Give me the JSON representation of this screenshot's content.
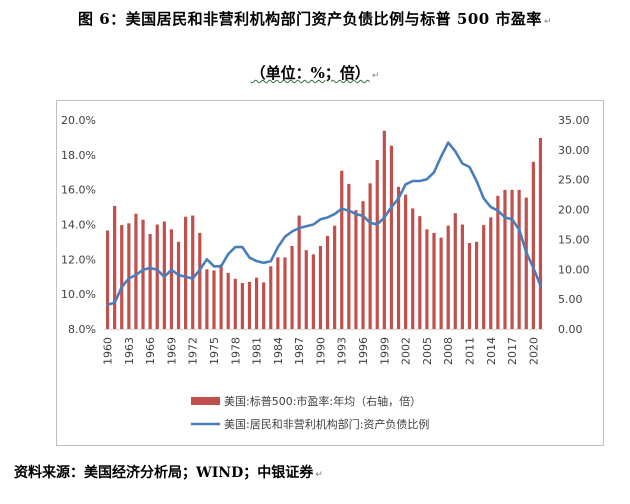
{
  "title": "图 6：美国居民和非营利机构部门资产负债比例与标普 500 市盈率",
  "unit": "（单位：%；倍）",
  "source": "资料来源：美国经济分析局；WIND；中银证券",
  "chart_data": {
    "type": "bar+line",
    "categories": [
      "1960",
      "1961",
      "1962",
      "1963",
      "1964",
      "1965",
      "1966",
      "1967",
      "1968",
      "1969",
      "1970",
      "1971",
      "1972",
      "1973",
      "1974",
      "1975",
      "1976",
      "1977",
      "1978",
      "1979",
      "1980",
      "1981",
      "1982",
      "1983",
      "1984",
      "1985",
      "1986",
      "1987",
      "1988",
      "1989",
      "1990",
      "1991",
      "1992",
      "1993",
      "1994",
      "1995",
      "1996",
      "1997",
      "1998",
      "1999",
      "2000",
      "2001",
      "2002",
      "2003",
      "2004",
      "2005",
      "2006",
      "2007",
      "2008",
      "2009",
      "2010",
      "2011",
      "2012",
      "2013",
      "2014",
      "2015",
      "2016",
      "2017",
      "2018",
      "2019",
      "2020",
      "2021"
    ],
    "x_tick_labels": [
      "1960",
      "1963",
      "1966",
      "1969",
      "1972",
      "1975",
      "1978",
      "1981",
      "1984",
      "1987",
      "1990",
      "1993",
      "1996",
      "1999",
      "2002",
      "2005",
      "2008",
      "2011",
      "2014",
      "2017",
      "2020"
    ],
    "left_axis": {
      "ylim": [
        8.0,
        20.0
      ],
      "ticks": [
        "8.0%",
        "10.0%",
        "12.0%",
        "14.0%",
        "16.0%",
        "18.0%",
        "20.0%"
      ]
    },
    "right_axis": {
      "ylim": [
        0,
        35
      ],
      "ticks": [
        "0.00",
        "5.00",
        "10.00",
        "15.00",
        "20.00",
        "25.00",
        "30.00",
        "35.00"
      ]
    },
    "series": [
      {
        "name": "美国:标普500:市盈率:年均（右轴，倍）",
        "type": "bar",
        "axis": "right",
        "color": "#c0504d",
        "values": [
          16.5,
          20.6,
          17.4,
          17.7,
          19.3,
          18.3,
          15.9,
          17.5,
          18.0,
          16.7,
          14.6,
          18.8,
          19.0,
          16.1,
          10.0,
          9.8,
          10.8,
          9.4,
          8.4,
          7.7,
          7.9,
          8.6,
          7.8,
          10.5,
          12.0,
          12.0,
          13.9,
          19.0,
          13.2,
          12.5,
          13.9,
          15.6,
          17.3,
          26.5,
          24.3,
          19.9,
          21.4,
          24.4,
          28.3,
          33.2,
          30.7,
          23.8,
          22.5,
          20.2,
          18.9,
          16.7,
          16.1,
          15.3,
          17.3,
          19.4,
          17.5,
          14.4,
          14.6,
          17.4,
          18.7,
          22.3,
          23.3,
          23.3,
          23.3,
          22.0,
          28.0,
          32.0
        ]
      },
      {
        "name": "美国:居民和非营利机构部门:资产负债比例",
        "type": "line",
        "axis": "left",
        "color": "#4a7ebb",
        "values": [
          9.4,
          9.5,
          10.4,
          10.9,
          11.1,
          11.4,
          11.5,
          11.4,
          11.0,
          11.4,
          11.1,
          11.0,
          10.9,
          11.4,
          12.0,
          11.6,
          11.6,
          12.3,
          12.7,
          12.7,
          12.1,
          11.9,
          11.8,
          11.9,
          12.7,
          13.3,
          13.6,
          13.8,
          13.9,
          14.0,
          14.3,
          14.4,
          14.6,
          14.9,
          14.8,
          14.6,
          14.5,
          14.1,
          14.0,
          14.4,
          15.0,
          15.5,
          16.3,
          16.5,
          16.5,
          16.6,
          17.0,
          17.9,
          18.7,
          18.2,
          17.5,
          17.3,
          16.5,
          15.5,
          15.0,
          14.8,
          14.4,
          14.3,
          13.7,
          12.4,
          11.5,
          10.5
        ]
      }
    ],
    "legend_position": "bottom",
    "grid": false
  }
}
